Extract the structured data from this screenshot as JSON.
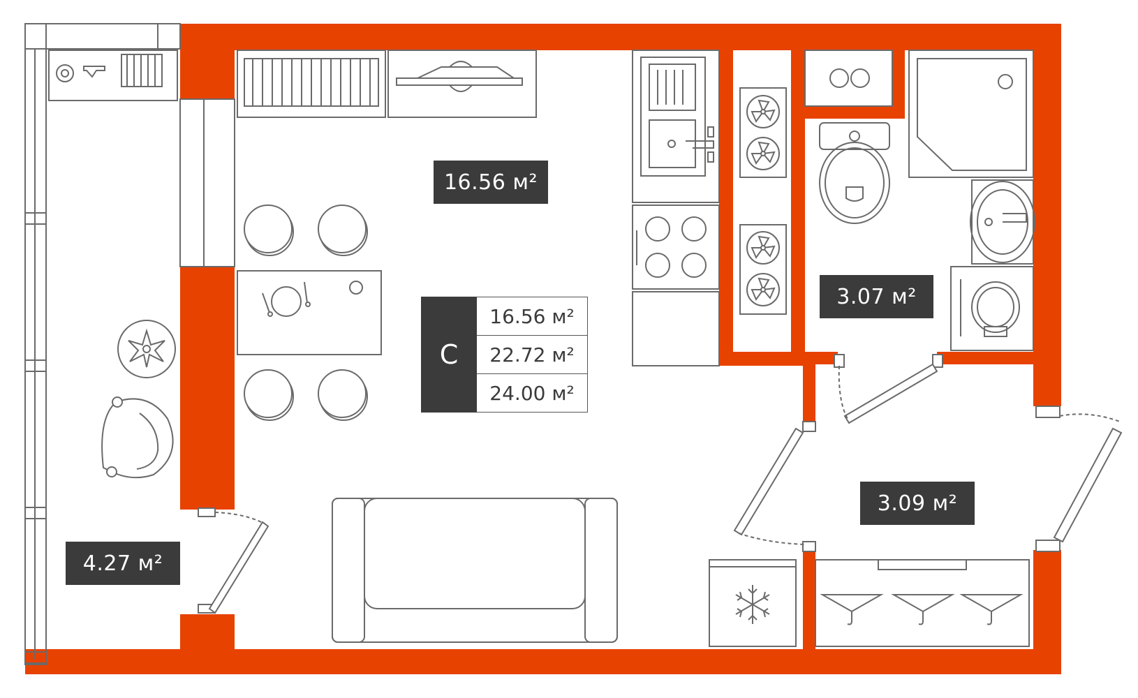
{
  "plan": {
    "wall_color": "#e84200",
    "line_color": "#6a6a6a",
    "label_bg": "#3b3b3b",
    "rooms": {
      "living": "16.56 м²",
      "bathroom": "3.07 м²",
      "hallway": "3.09 м²",
      "balcony": "4.27 м²"
    },
    "summary": {
      "letter": "С",
      "living_area": "16.56 м²",
      "total_area": "22.72 м²",
      "total_with_balcony": "24.00 м²"
    },
    "icons": [
      "radiator-icon",
      "wardrobe-icon",
      "sink-icon",
      "stove-icon",
      "fan-icon",
      "toilet-icon",
      "shower-icon",
      "washbasin-icon",
      "washing-machine-icon",
      "table-icon",
      "chair-icon",
      "armchair-icon",
      "plant-icon",
      "sofa-icon",
      "fridge-icon",
      "hanger-icon",
      "boiler-icon"
    ]
  }
}
